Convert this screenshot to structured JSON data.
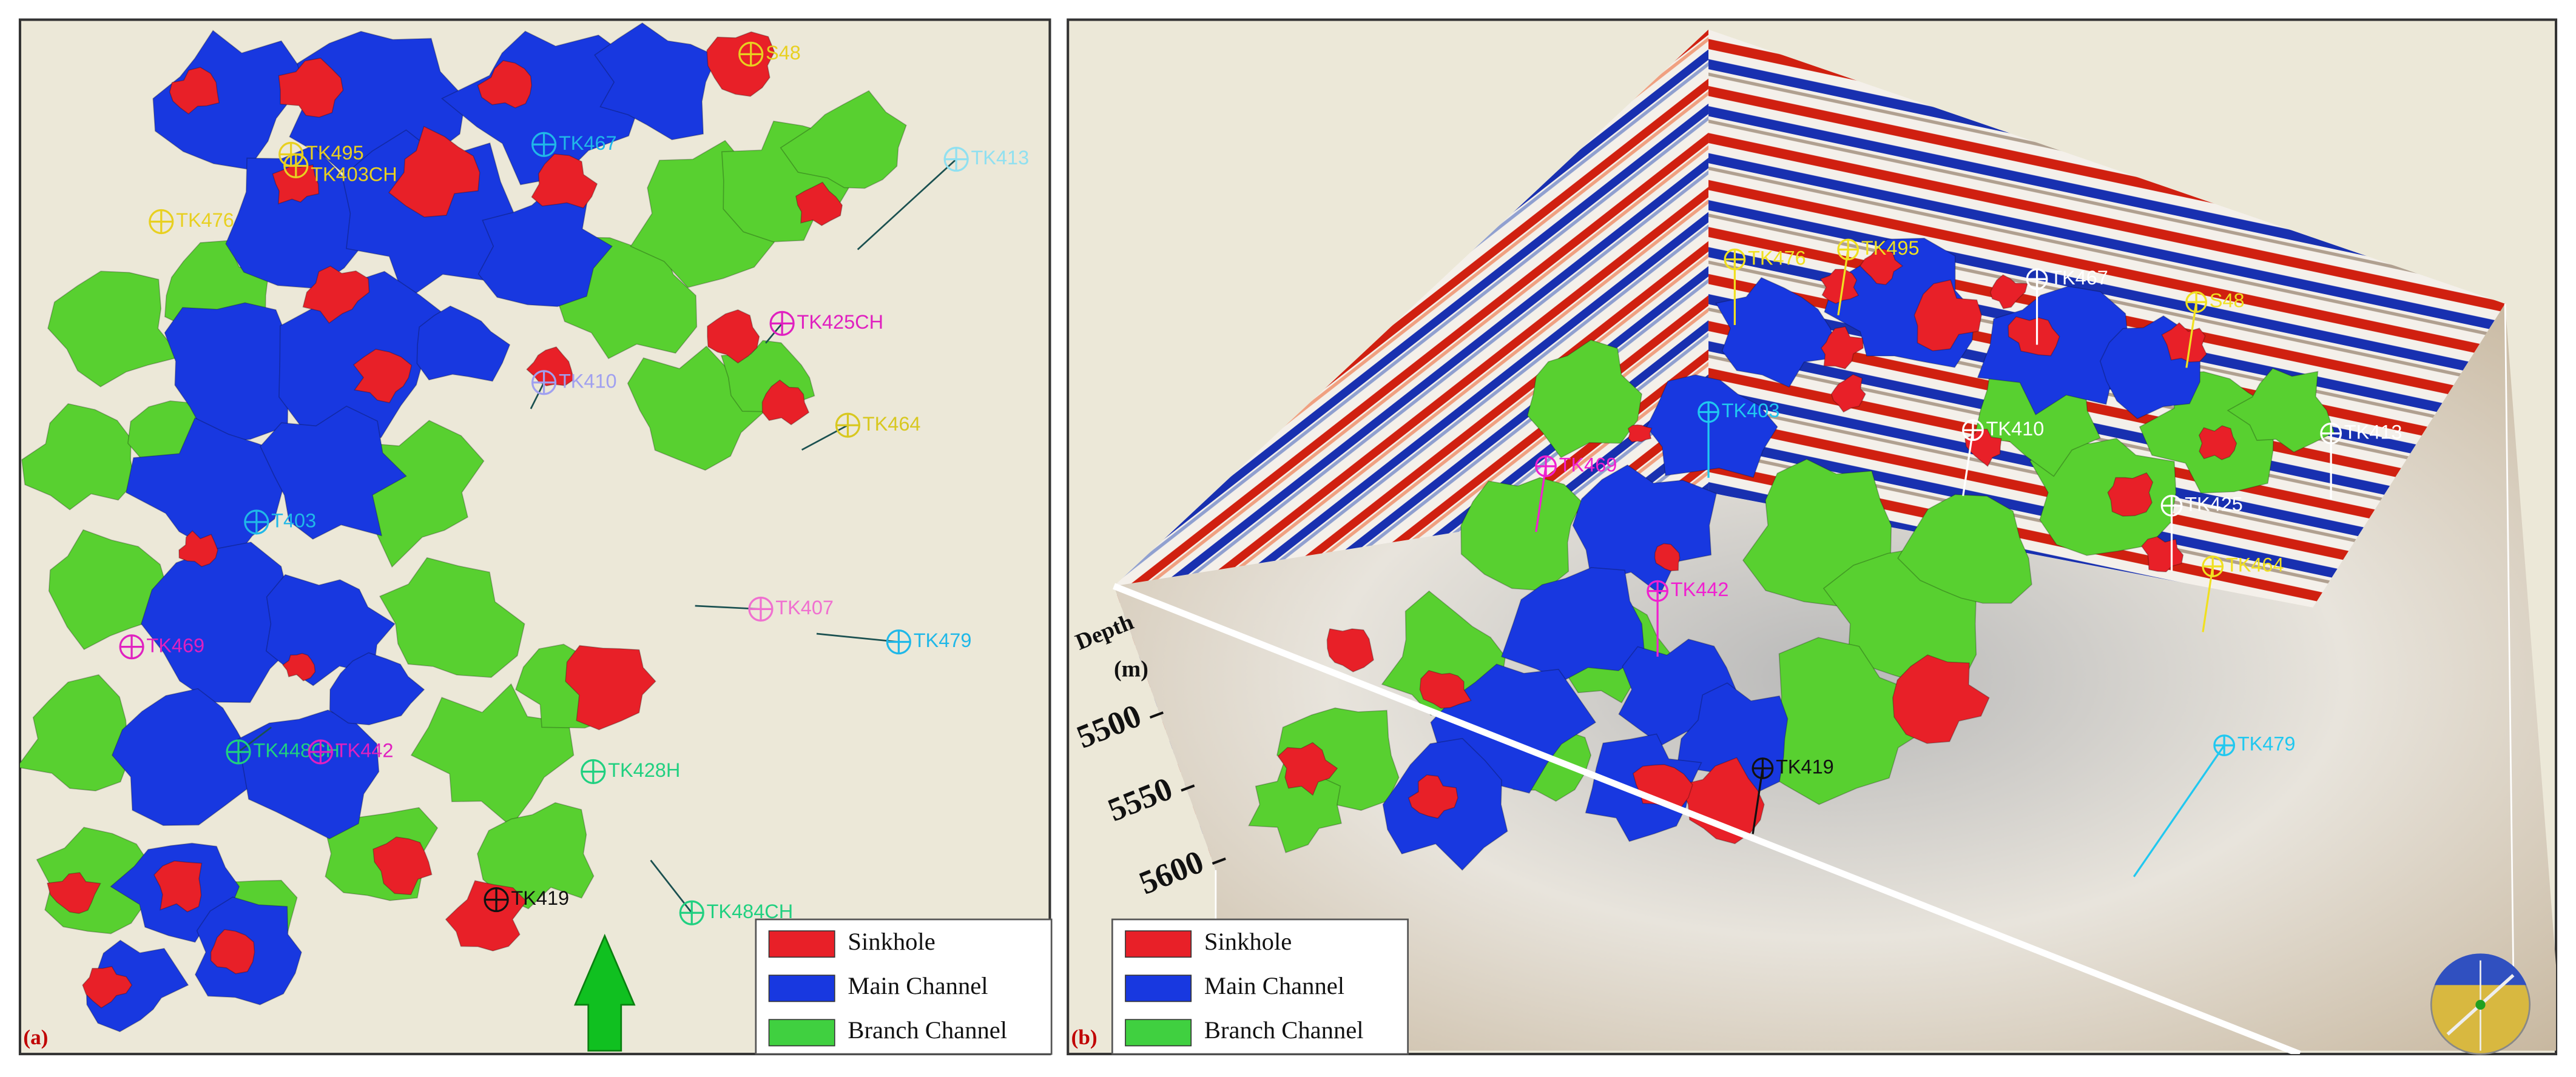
{
  "panels": [
    {
      "label": "(a)",
      "legend": [
        "Sinkhole",
        "Main Channel",
        "Branch Channel"
      ],
      "wells": [
        {
          "label": "S48",
          "color": "#e8d020"
        },
        {
          "label": "TK495",
          "color": "#e8d020"
        },
        {
          "label": "TK403CH",
          "color": "#e8d020"
        },
        {
          "label": "TK467",
          "color": "#20b8e8"
        },
        {
          "label": "TK413",
          "color": "#90e0f0"
        },
        {
          "label": "TK476",
          "color": "#e8d020"
        },
        {
          "label": "TK425CH",
          "color": "#e020c0"
        },
        {
          "label": "TK410",
          "color": "#a0a0f0"
        },
        {
          "label": "TK464",
          "color": "#d8c820"
        },
        {
          "label": "T403",
          "color": "#20b8e8"
        },
        {
          "label": "TK407",
          "color": "#f070d0"
        },
        {
          "label": "TK479",
          "color": "#20b8e8"
        },
        {
          "label": "TK469",
          "color": "#e020c0"
        },
        {
          "label": "TK448CH",
          "color": "#20d080"
        },
        {
          "label": "TK442",
          "color": "#e020c0"
        },
        {
          "label": "TK428H",
          "color": "#20d080"
        },
        {
          "label": "TK419",
          "color": "#111111"
        },
        {
          "label": "TK484CH",
          "color": "#20d080"
        }
      ]
    },
    {
      "label": "(b)",
      "legend": [
        "Sinkhole",
        "Main Channel",
        "Branch Channel"
      ],
      "depth_axis": {
        "label": "Depth",
        "unit": "(m)",
        "ticks": [
          5500,
          5550,
          5600
        ]
      },
      "wells": [
        {
          "label": "TK476",
          "color": "#f0e020"
        },
        {
          "label": "TK495",
          "color": "#f0e020"
        },
        {
          "label": "TK467",
          "color": "#ffffff"
        },
        {
          "label": "S48",
          "color": "#f0e020"
        },
        {
          "label": "TK403",
          "color": "#20c8f0"
        },
        {
          "label": "TK410",
          "color": "#ffffff"
        },
        {
          "label": "TK413",
          "color": "#ffffff"
        },
        {
          "label": "TK469",
          "color": "#f020d0"
        },
        {
          "label": "TK425",
          "color": "#ffffff"
        },
        {
          "label": "TK464",
          "color": "#f0e020"
        },
        {
          "label": "TK442",
          "color": "#f020d0"
        },
        {
          "label": "TK419",
          "color": "#111111"
        },
        {
          "label": "TK479",
          "color": "#20c8f0"
        }
      ]
    }
  ]
}
